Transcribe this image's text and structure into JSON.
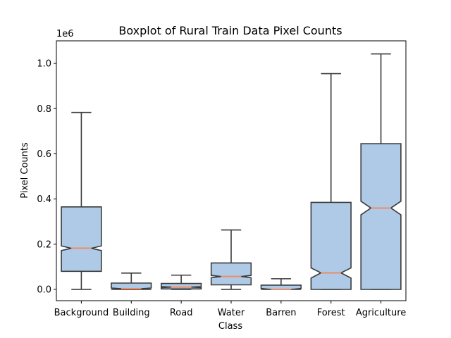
{
  "chart_data": {
    "type": "boxplot",
    "title": "Boxplot of Rural Train Data Pixel Counts",
    "xlabel": "Class",
    "ylabel": "Pixel Counts",
    "y_offset_label": "1e6",
    "y_multiplier": 1000000,
    "ylim": [
      -50000,
      1100000
    ],
    "yticks": [
      0,
      200000,
      400000,
      600000,
      800000,
      1000000
    ],
    "ytick_labels": [
      "0.0",
      "0.2",
      "0.4",
      "0.6",
      "0.8",
      "1.0"
    ],
    "notched": true,
    "grid": false,
    "categories": [
      "Background",
      "Building",
      "Road",
      "Water",
      "Barren",
      "Forest",
      "Agriculture"
    ],
    "boxes": [
      {
        "whisker_low": 0,
        "q1": 80000,
        "median": 182000,
        "q3": 365000,
        "whisker_high": 783000,
        "notch_low": 172000,
        "notch_high": 192000
      },
      {
        "whisker_low": 0,
        "q1": 0,
        "median": 3000,
        "q3": 28000,
        "whisker_high": 72000,
        "notch_low": 0,
        "notch_high": 6000
      },
      {
        "whisker_low": 0,
        "q1": 2000,
        "median": 10000,
        "q3": 26000,
        "whisker_high": 63000,
        "notch_low": 8000,
        "notch_high": 12000
      },
      {
        "whisker_low": 0,
        "q1": 20000,
        "median": 57000,
        "q3": 117000,
        "whisker_high": 263000,
        "notch_low": 52000,
        "notch_high": 62000
      },
      {
        "whisker_low": 0,
        "q1": 0,
        "median": 0,
        "q3": 19000,
        "whisker_high": 47000,
        "notch_low": 0,
        "notch_high": 4000
      },
      {
        "whisker_low": 0,
        "q1": 0,
        "median": 73000,
        "q3": 385000,
        "whisker_high": 955000,
        "notch_low": 50000,
        "notch_high": 95000
      },
      {
        "whisker_low": 0,
        "q1": 0,
        "median": 360000,
        "q3": 645000,
        "whisker_high": 1042000,
        "notch_low": 330000,
        "notch_high": 390000
      }
    ],
    "colors": {
      "box_fill": "#aecae6",
      "box_edge": "#3b3b3b",
      "median": "#f28b63"
    }
  }
}
